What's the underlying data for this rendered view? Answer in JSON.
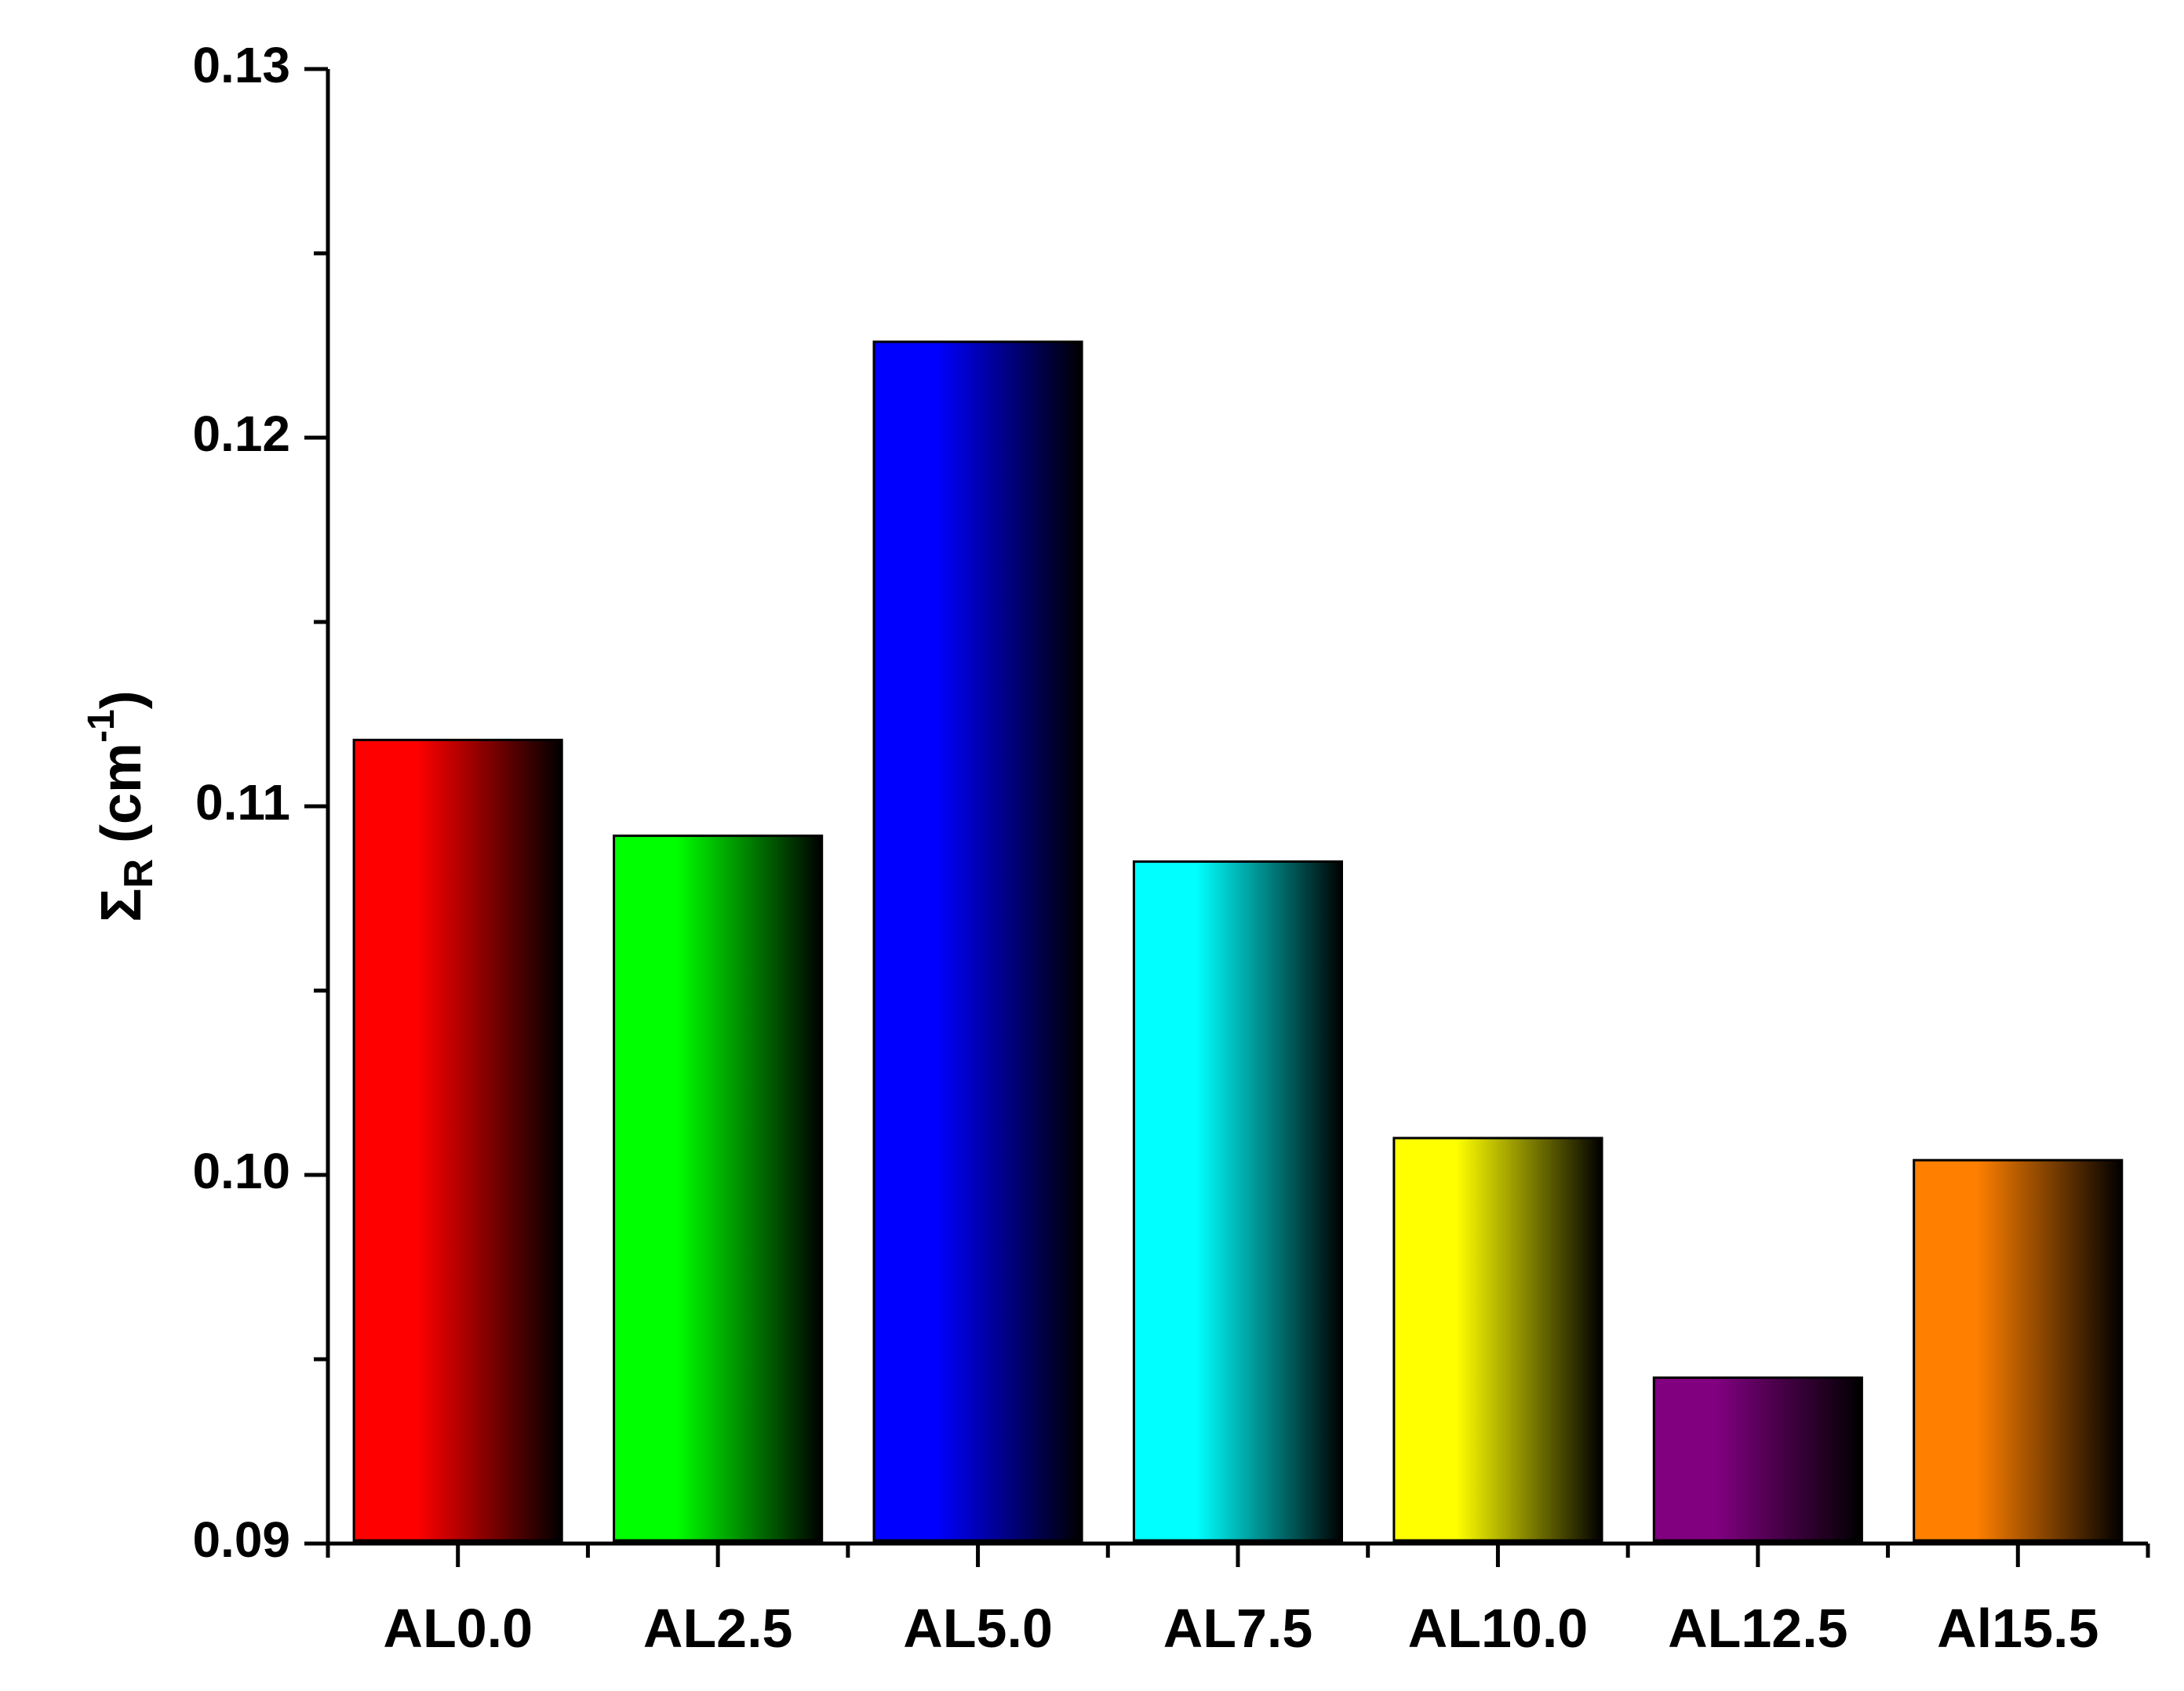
{
  "chart_data": {
    "type": "bar",
    "categories": [
      "AL0.0",
      "AL2.5",
      "AL5.0",
      "AL7.5",
      "AL10.0",
      "AL12.5",
      "Al15.5"
    ],
    "values": [
      0.1118,
      0.1092,
      0.1226,
      0.1085,
      0.101,
      0.0945,
      0.1004
    ],
    "colors": [
      "#ff0000",
      "#00ff00",
      "#0000ff",
      "#00ffff",
      "#ffff00",
      "#800080",
      "#ff8000"
    ],
    "ylim": [
      0.09,
      0.13
    ],
    "yticks": [
      "0.09",
      "0.10",
      "0.11",
      "0.12",
      "0.13"
    ],
    "ylabel": {
      "symbol": "Σ",
      "subscript": "R",
      "unit_open": " (cm",
      "superscript": "-1",
      "unit_close": ")"
    },
    "xlabel": "",
    "title": "",
    "legend": "none",
    "grid": false
  }
}
